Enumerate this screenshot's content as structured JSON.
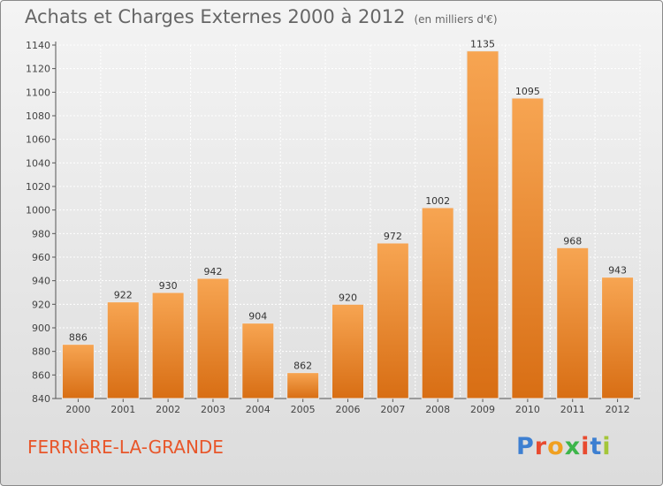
{
  "header": {
    "title": "Achats et Charges Externes 2000 à 2012",
    "subtitle": "(en milliers d'€)"
  },
  "footer": {
    "commune": "FERRIèRE-LA-GRANDE",
    "logo_letters": [
      "P",
      "r",
      "o",
      "x",
      "i",
      "t",
      "i"
    ],
    "logo_colors": [
      "#3d7fd1",
      "#e84a2f",
      "#f0a020",
      "#3db54a",
      "#e84a2f",
      "#3d7fd1",
      "#a4c639"
    ]
  },
  "chart_data": {
    "type": "bar",
    "categories": [
      "2000",
      "2001",
      "2002",
      "2003",
      "2004",
      "2005",
      "2006",
      "2007",
      "2008",
      "2009",
      "2010",
      "2011",
      "2012"
    ],
    "values": [
      886,
      922,
      930,
      942,
      904,
      862,
      920,
      972,
      1002,
      1135,
      1095,
      968,
      943
    ],
    "ylim": [
      840,
      1140
    ],
    "yticks": [
      840,
      860,
      880,
      900,
      920,
      940,
      960,
      980,
      1000,
      1020,
      1040,
      1060,
      1080,
      1100,
      1120,
      1140
    ],
    "grid": true,
    "bar_color": "#f29a3f"
  }
}
